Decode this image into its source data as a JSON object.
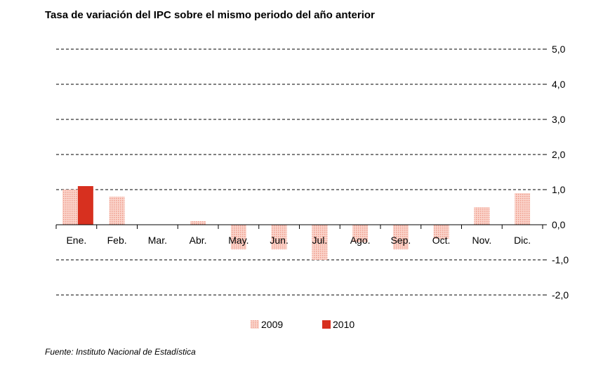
{
  "chart_data": {
    "type": "bar",
    "title": "Tasa de variación del IPC sobre el mismo periodo del año anterior",
    "categories": [
      "Ene.",
      "Feb.",
      "Mar.",
      "Abr.",
      "May.",
      "Jun.",
      "Jul.",
      "Ago.",
      "Sep.",
      "Oct.",
      "Nov.",
      "Dic."
    ],
    "series": [
      {
        "name": "2009",
        "values": [
          1.0,
          0.8,
          0.0,
          0.1,
          -0.7,
          -0.7,
          -1.0,
          -0.5,
          -0.7,
          -0.4,
          0.5,
          0.9
        ],
        "color": "#f4b4a8",
        "pattern": "dotted"
      },
      {
        "name": "2010",
        "values": [
          1.1,
          null,
          null,
          null,
          null,
          null,
          null,
          null,
          null,
          null,
          null,
          null
        ],
        "color": "#d7301f",
        "pattern": "solid"
      }
    ],
    "ylim": [
      -2.0,
      5.0
    ],
    "yticks": [
      "5,0",
      "4,0",
      "3,0",
      "2,0",
      "1,0",
      "0,0",
      "-1,0",
      "-2,0"
    ],
    "ytick_values": [
      5,
      4,
      3,
      2,
      1,
      0,
      -1,
      -2
    ],
    "y_axis_side": "right",
    "grid": "dashed horizontal",
    "legend_position": "bottom-center"
  },
  "source": "Fuente: Instituto Nacional de Estadística"
}
